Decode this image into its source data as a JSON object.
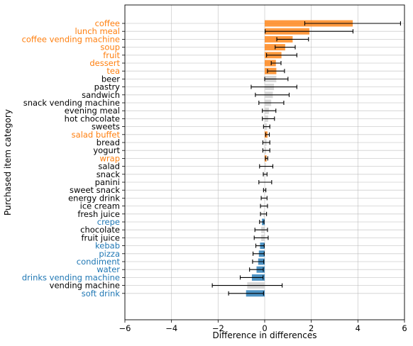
{
  "chart_data": {
    "type": "bar",
    "orientation": "horizontal",
    "xlabel": "Difference in differences",
    "ylabel": "Purchased item category",
    "xlim": [
      -6,
      6
    ],
    "xticks": [
      -6,
      -4,
      -2,
      0,
      2,
      4,
      6
    ],
    "xtick_labels": [
      "−6",
      "−4",
      "−2",
      "0",
      "2",
      "4",
      "6"
    ],
    "grid": true,
    "colors": {
      "positive": "#ff7f0e",
      "negative": "#1f77b4",
      "neutral": "#000000",
      "neutral_bar": "#d3d3d3"
    },
    "categories": [
      {
        "label": "coffee",
        "value": 3.78,
        "ci": [
          1.72,
          5.83
        ],
        "group": "positive"
      },
      {
        "label": "lunch meal",
        "value": 1.92,
        "ci": [
          0.02,
          3.79
        ],
        "group": "positive"
      },
      {
        "label": "coffee vending machine",
        "value": 1.2,
        "ci": [
          0.52,
          1.88
        ],
        "group": "positive"
      },
      {
        "label": "soup",
        "value": 0.88,
        "ci": [
          0.45,
          1.31
        ],
        "group": "positive"
      },
      {
        "label": "fruit",
        "value": 0.72,
        "ci": [
          0.08,
          1.38
        ],
        "group": "positive"
      },
      {
        "label": "dessert",
        "value": 0.48,
        "ci": [
          0.28,
          0.7
        ],
        "group": "positive"
      },
      {
        "label": "tea",
        "value": 0.5,
        "ci": [
          0.12,
          0.85
        ],
        "group": "positive"
      },
      {
        "label": "beer",
        "value": 0.5,
        "ci": [
          0.0,
          1.0
        ],
        "group": "neutral"
      },
      {
        "label": "pastry",
        "value": 0.4,
        "ci": [
          -0.58,
          1.38
        ],
        "group": "neutral"
      },
      {
        "label": "sandwich",
        "value": 0.35,
        "ci": [
          -0.4,
          1.05
        ],
        "group": "neutral"
      },
      {
        "label": "snack vending machine",
        "value": 0.28,
        "ci": [
          -0.25,
          0.82
        ],
        "group": "neutral"
      },
      {
        "label": "evening meal",
        "value": 0.18,
        "ci": [
          -0.1,
          0.48
        ],
        "group": "neutral"
      },
      {
        "label": "hot chocolate",
        "value": 0.15,
        "ci": [
          -0.1,
          0.42
        ],
        "group": "neutral"
      },
      {
        "label": "sweets",
        "value": 0.1,
        "ci": [
          -0.05,
          0.22
        ],
        "group": "neutral"
      },
      {
        "label": "salad buffet",
        "value": 0.12,
        "ci": [
          0.04,
          0.2
        ],
        "group": "positive"
      },
      {
        "label": "bread",
        "value": 0.08,
        "ci": [
          -0.08,
          0.22
        ],
        "group": "neutral"
      },
      {
        "label": "yogurt",
        "value": 0.06,
        "ci": [
          -0.08,
          0.22
        ],
        "group": "neutral"
      },
      {
        "label": "wrap",
        "value": 0.08,
        "ci": [
          0.03,
          0.13
        ],
        "group": "positive"
      },
      {
        "label": "salad",
        "value": 0.05,
        "ci": [
          -0.22,
          0.35
        ],
        "group": "neutral"
      },
      {
        "label": "snack",
        "value": 0.02,
        "ci": [
          -0.06,
          0.1
        ],
        "group": "neutral"
      },
      {
        "label": "panini",
        "value": 0.02,
        "ci": [
          -0.25,
          0.3
        ],
        "group": "neutral"
      },
      {
        "label": "sweet snack",
        "value": 0.0,
        "ci": [
          -0.05,
          0.05
        ],
        "group": "neutral"
      },
      {
        "label": "energy drink",
        "value": -0.02,
        "ci": [
          -0.15,
          0.1
        ],
        "group": "neutral"
      },
      {
        "label": "ice cream",
        "value": -0.02,
        "ci": [
          -0.18,
          0.12
        ],
        "group": "neutral"
      },
      {
        "label": "fresh juice",
        "value": -0.05,
        "ci": [
          -0.18,
          0.08
        ],
        "group": "neutral"
      },
      {
        "label": "crepe",
        "value": -0.12,
        "ci": [
          -0.22,
          -0.03
        ],
        "group": "negative"
      },
      {
        "label": "chocolate",
        "value": -0.15,
        "ci": [
          -0.42,
          0.12
        ],
        "group": "neutral"
      },
      {
        "label": "fruit juice",
        "value": -0.15,
        "ci": [
          -0.45,
          0.15
        ],
        "group": "neutral"
      },
      {
        "label": "kebab",
        "value": -0.2,
        "ci": [
          -0.38,
          -0.02
        ],
        "group": "negative"
      },
      {
        "label": "pizza",
        "value": -0.25,
        "ci": [
          -0.5,
          -0.02
        ],
        "group": "negative"
      },
      {
        "label": "condiment",
        "value": -0.28,
        "ci": [
          -0.52,
          -0.04
        ],
        "group": "negative"
      },
      {
        "label": "water",
        "value": -0.35,
        "ci": [
          -0.65,
          -0.06
        ],
        "group": "negative"
      },
      {
        "label": "drinks vending machine",
        "value": -0.55,
        "ci": [
          -1.05,
          -0.07
        ],
        "group": "negative"
      },
      {
        "label": "vending machine",
        "value": -0.75,
        "ci": [
          -2.25,
          0.75
        ],
        "group": "neutral"
      },
      {
        "label": "soft drink",
        "value": -0.8,
        "ci": [
          -1.55,
          -0.05
        ],
        "group": "negative"
      }
    ]
  }
}
